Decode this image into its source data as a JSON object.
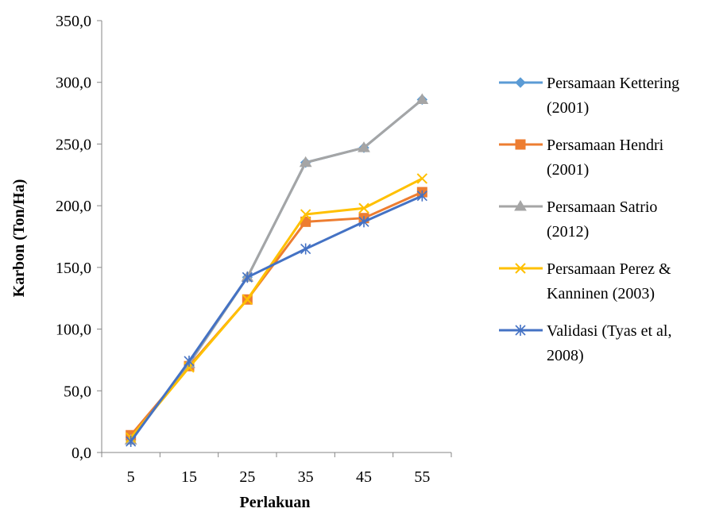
{
  "chart_data": {
    "type": "line",
    "title": "",
    "xlabel": "Perlakuan",
    "ylabel": "Karbon (Ton/Ha)",
    "categories": [
      "5",
      "15",
      "25",
      "35",
      "45",
      "55"
    ],
    "ylim": [
      0,
      350
    ],
    "yticks": [
      "0,0",
      "50,0",
      "100,0",
      "150,0",
      "200,0",
      "250,0",
      "300,0",
      "350,0"
    ],
    "grid": false,
    "legend_position": "right",
    "series": [
      {
        "name_lines": [
          "Persamaan Kettering",
          "(2001)"
        ],
        "color": "#5B9BD5",
        "marker": "diamond",
        "values": [
          10,
          72,
          142,
          235,
          247,
          286
        ]
      },
      {
        "name_lines": [
          "Persamaan Hendri",
          "(2001)"
        ],
        "color": "#ED7D31",
        "marker": "square",
        "values": [
          14,
          70,
          124,
          187,
          190,
          211
        ]
      },
      {
        "name_lines": [
          "Persamaan Satrio",
          "(2012)"
        ],
        "color": "#A5A5A5",
        "marker": "triangle",
        "values": [
          10,
          72,
          142,
          235,
          247,
          286
        ]
      },
      {
        "name_lines": [
          "Persamaan Perez &",
          "Kanninen (2003)"
        ],
        "color": "#FFC000",
        "marker": "x",
        "values": [
          12,
          69,
          124,
          193,
          198,
          222
        ]
      },
      {
        "name_lines": [
          "Validasi (Tyas et al,",
          "2008)"
        ],
        "color": "#4472C4",
        "marker": "star",
        "values": [
          9,
          74,
          142,
          165,
          187,
          208
        ]
      }
    ]
  }
}
